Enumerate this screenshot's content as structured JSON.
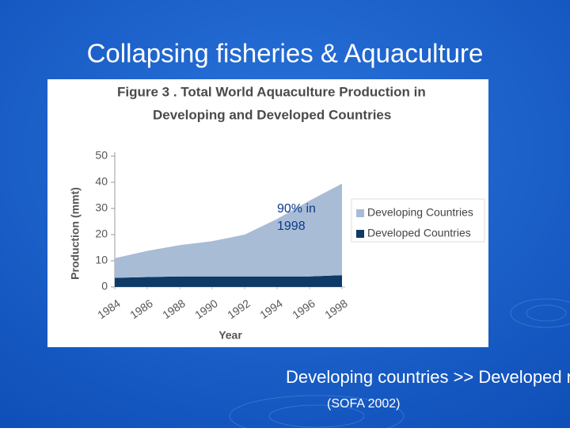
{
  "slide": {
    "title": "Collapsing fisheries & Aquaculture",
    "caption": "Developing countries >> Developed nations",
    "source": "(SOFA 2002)"
  },
  "chart_data": {
    "type": "area",
    "stacked": true,
    "title_lines": [
      "Figure 3 . Total World Aquaculture Production in",
      "Developing and Developed Countries"
    ],
    "x_label": "Year",
    "y_label": "Production (mmt)",
    "x": [
      1984,
      1986,
      1988,
      1990,
      1992,
      1994,
      1996,
      1998
    ],
    "xlim": [
      1984,
      1998
    ],
    "xticks": [
      1984,
      1986,
      1988,
      1990,
      1992,
      1994,
      1996,
      1998
    ],
    "ylim": [
      0,
      50
    ],
    "yticks": [
      0,
      10,
      20,
      30,
      40,
      50
    ],
    "series": [
      {
        "name": "Developing Countries",
        "color": "#a9bcd6",
        "values": [
          7.5,
          10,
          12,
          13.5,
          16,
          22,
          29,
          35
        ]
      },
      {
        "name": "Developed Countries",
        "color": "#0d3a66",
        "values": [
          3.5,
          3.8,
          4,
          4,
          4,
          4,
          4,
          4.5
        ]
      }
    ],
    "annotation_lines": [
      "90% in",
      "1998"
    ]
  }
}
